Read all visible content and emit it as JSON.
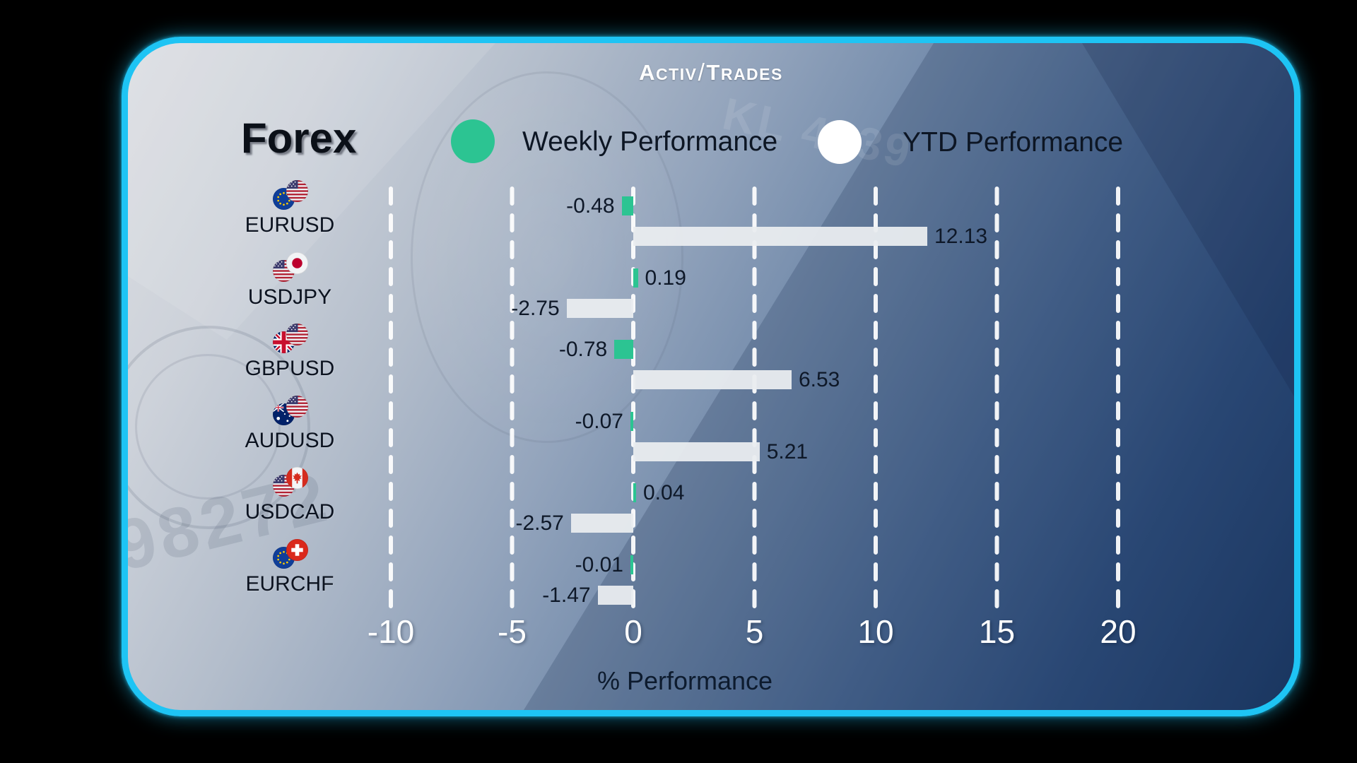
{
  "brand": {
    "logo_part1": "Activ",
    "logo_part2": "Trades",
    "logo_divider": "/",
    "logo_color": "#ffffff"
  },
  "title": "Forex",
  "legend": [
    {
      "label": "Weekly Performance",
      "color": "#2cc492"
    },
    {
      "label": "YTD Performance",
      "color": "#ffffff"
    }
  ],
  "background": {
    "card_border_color": "#1ec4f4",
    "outer_color": "#000000",
    "gradient": [
      "#dcdee2",
      "#93a4bc",
      "#1d3b67"
    ],
    "watermarks": [
      "98272",
      "KL 4439"
    ]
  },
  "chart_data": {
    "type": "bar",
    "orientation": "horizontal",
    "title": "Forex",
    "xlabel": "% Performance",
    "x_ticks": [
      -10,
      -5,
      0,
      5,
      10,
      15,
      20
    ],
    "xlim": [
      -12.5,
      22.5
    ],
    "grid": "vertical dashed white lines at each tick",
    "legend_position": "top",
    "bar_label_color": "#0e1828",
    "tick_label_color": "#ffffff",
    "series": [
      {
        "name": "Weekly Performance",
        "color": "#2cc492"
      },
      {
        "name": "YTD Performance",
        "color": "#e9ecef"
      }
    ],
    "pairs": [
      {
        "label": "EURUSD",
        "flags": [
          "eu",
          "us"
        ],
        "weekly": -0.48,
        "ytd": 12.13
      },
      {
        "label": "USDJPY",
        "flags": [
          "us",
          "jp"
        ],
        "weekly": 0.19,
        "ytd": -2.75
      },
      {
        "label": "GBPUSD",
        "flags": [
          "gb",
          "us"
        ],
        "weekly": -0.78,
        "ytd": 6.53
      },
      {
        "label": "AUDUSD",
        "flags": [
          "au",
          "us"
        ],
        "weekly": -0.07,
        "ytd": 5.21
      },
      {
        "label": "USDCAD",
        "flags": [
          "us",
          "ca"
        ],
        "weekly": 0.04,
        "ytd": -2.57
      },
      {
        "label": "EURCHF",
        "flags": [
          "eu",
          "ch"
        ],
        "weekly": -0.01,
        "ytd": -1.47
      }
    ]
  }
}
